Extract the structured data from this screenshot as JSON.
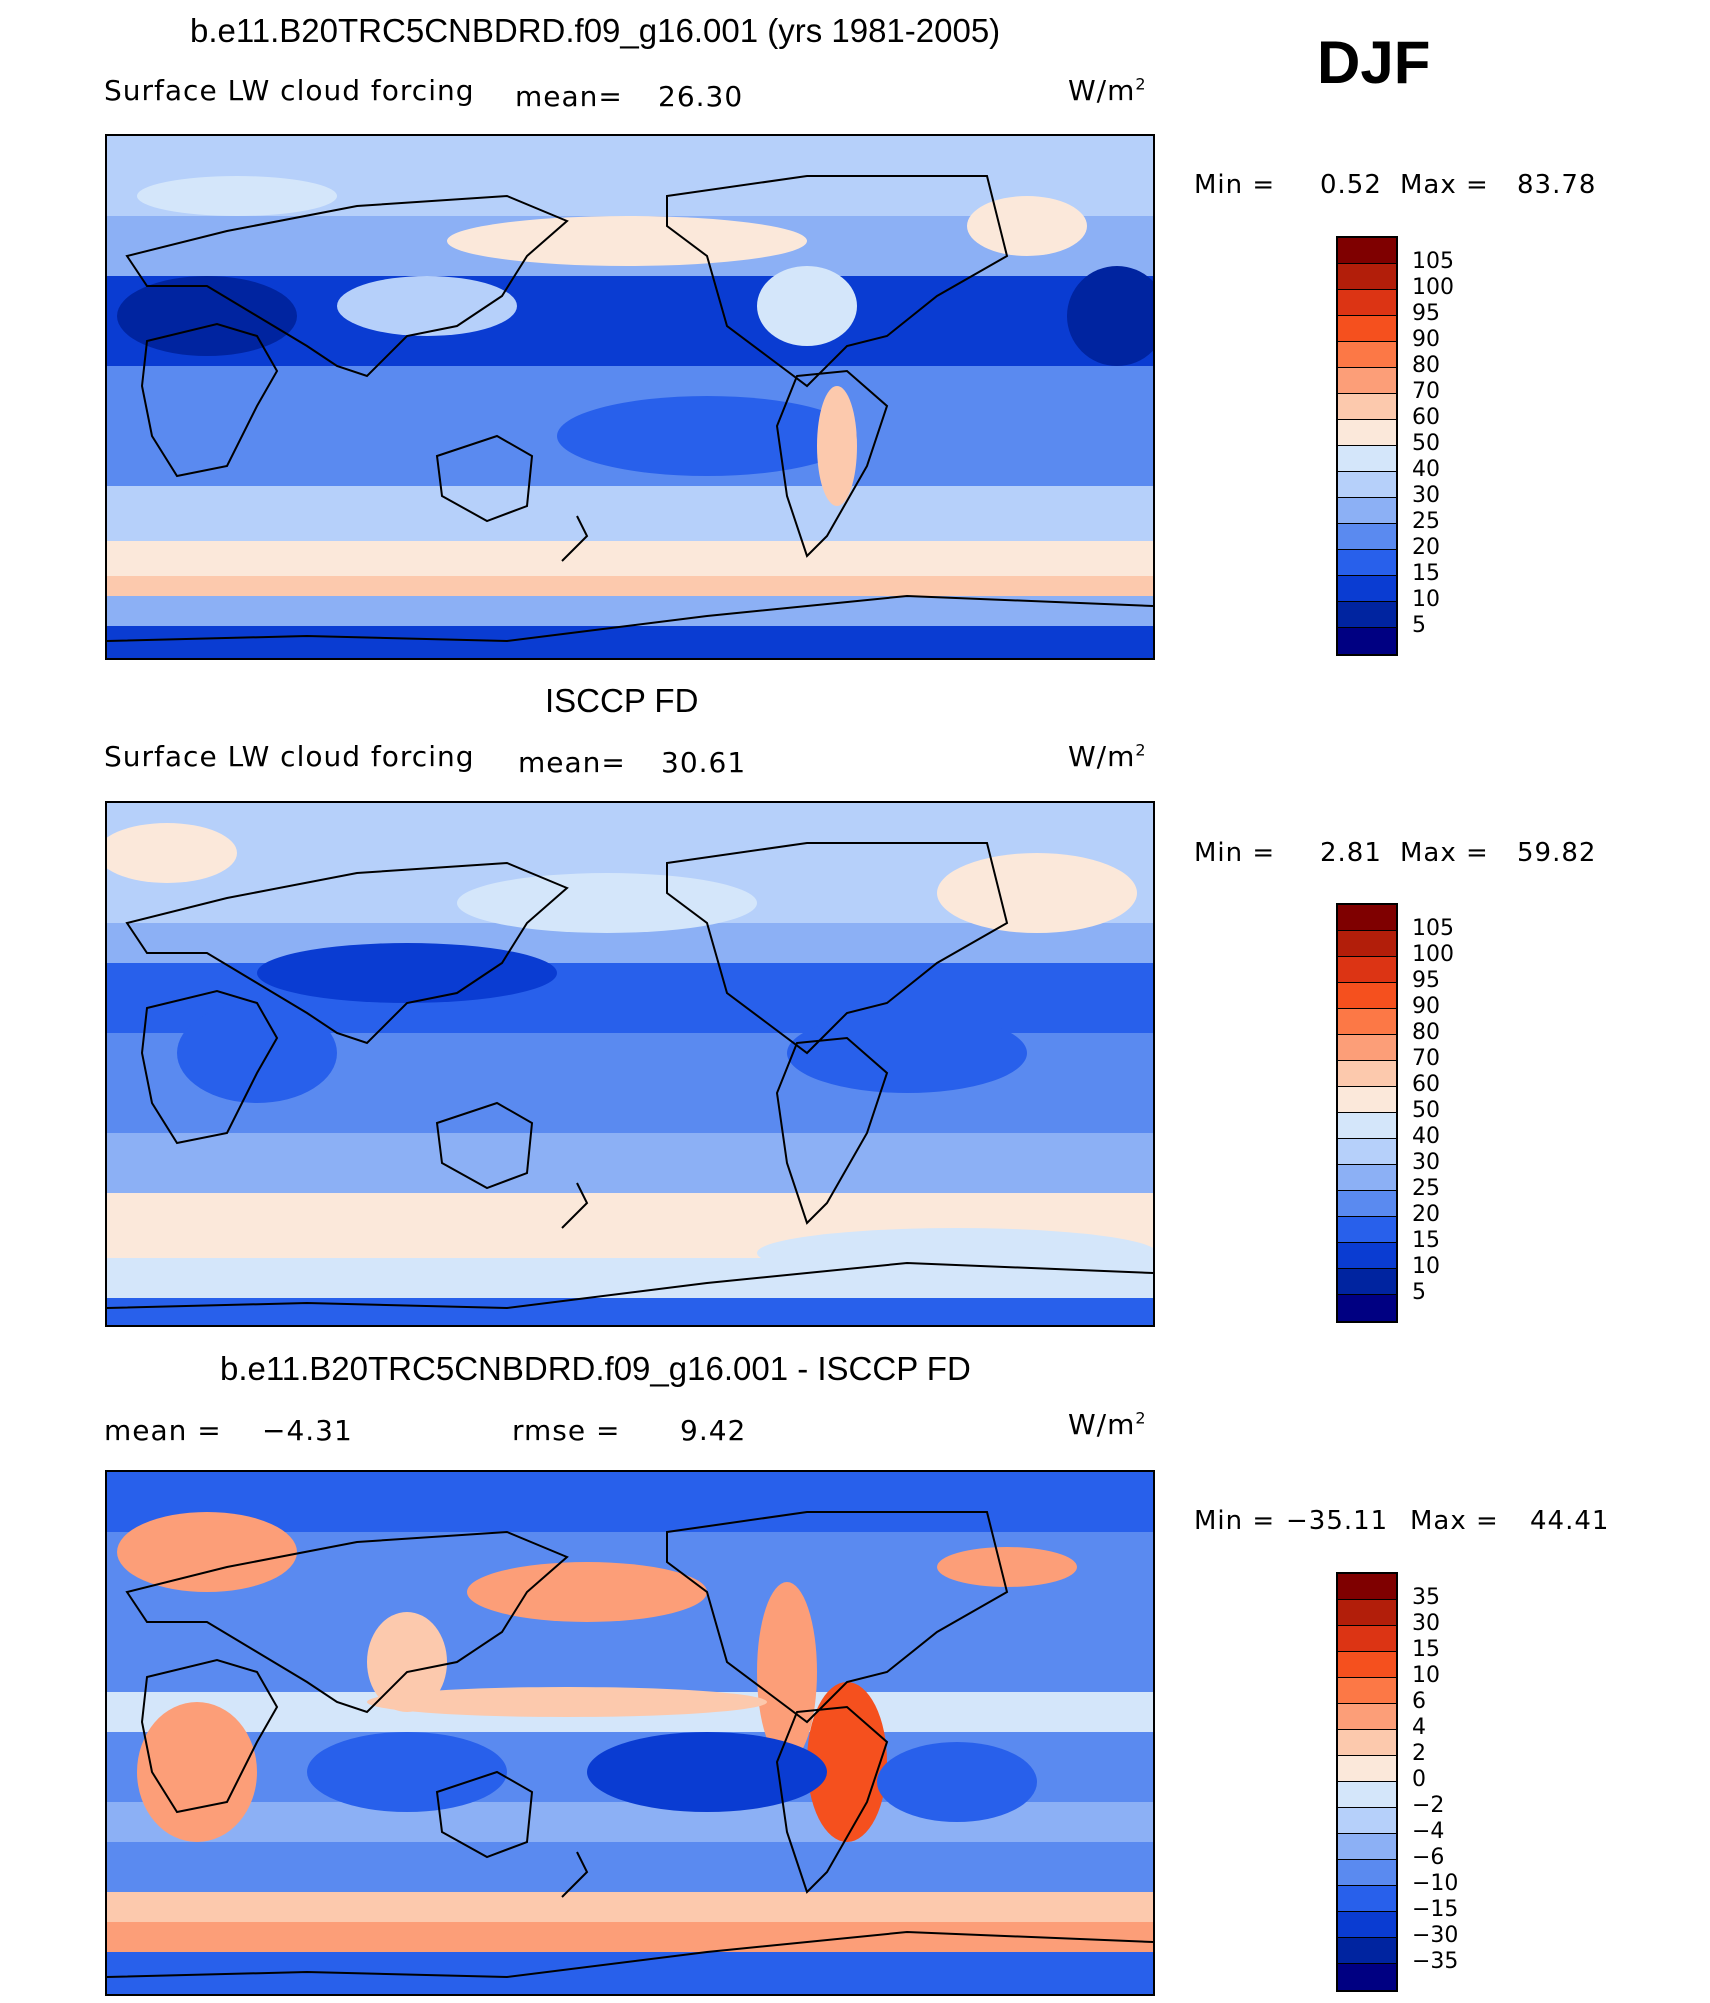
{
  "header": {
    "season": "DJF"
  },
  "chart_data": [
    {
      "type": "heatmap",
      "title": "b.e11.B20TRC5CNBDRD.f09_g16.001 (yrs 1981-2005)",
      "variable": "Surface LW cloud forcing",
      "mean_label": "mean=",
      "mean": "26.30",
      "units": "W/m",
      "units_exp": "2",
      "min_label": "Min =",
      "min": "0.52",
      "max_label": "Max =",
      "max": "83.78",
      "levels": [
        "105",
        "100",
        "95",
        "90",
        "80",
        "70",
        "60",
        "50",
        "40",
        "30",
        "25",
        "20",
        "15",
        "10",
        "5"
      ],
      "colors": [
        "#7f0000",
        "#b21e0a",
        "#dc3414",
        "#f5501e",
        "#fc7846",
        "#fc9e78",
        "#fcc9ad",
        "#fbe8da",
        "#d4e6fa",
        "#b6d0fa",
        "#8cb0f5",
        "#5a8af0",
        "#2860eb",
        "#0a3cd2",
        "#0024a0",
        "#000082"
      ],
      "pattern": "model"
    },
    {
      "type": "heatmap",
      "title": "ISCCP FD",
      "variable": "Surface LW cloud forcing",
      "mean_label": "mean=",
      "mean": "30.61",
      "units": "W/m",
      "units_exp": "2",
      "min_label": "Min =",
      "min": "2.81",
      "max_label": "Max =",
      "max": "59.82",
      "levels": [
        "105",
        "100",
        "95",
        "90",
        "80",
        "70",
        "60",
        "50",
        "40",
        "30",
        "25",
        "20",
        "15",
        "10",
        "5"
      ],
      "colors": [
        "#7f0000",
        "#b21e0a",
        "#dc3414",
        "#f5501e",
        "#fc7846",
        "#fc9e78",
        "#fcc9ad",
        "#fbe8da",
        "#d4e6fa",
        "#b6d0fa",
        "#8cb0f5",
        "#5a8af0",
        "#2860eb",
        "#0a3cd2",
        "#0024a0",
        "#000082"
      ],
      "pattern": "obs"
    },
    {
      "type": "heatmap",
      "title": "b.e11.B20TRC5CNBDRD.f09_g16.001 - ISCCP FD",
      "mean_label": "mean =",
      "mean": "−4.31",
      "rmse_label": "rmse =",
      "rmse": "9.42",
      "units": "W/m",
      "units_exp": "2",
      "min_label": "Min =",
      "min": "−35.11",
      "max_label": "Max =",
      "max": "44.41",
      "levels": [
        "35",
        "30",
        "15",
        "10",
        "6",
        "4",
        "2",
        "0",
        "−2",
        "−4",
        "−6",
        "−10",
        "−15",
        "−30",
        "−35"
      ],
      "colors": [
        "#7f0000",
        "#b21e0a",
        "#dc3414",
        "#f5501e",
        "#fc7846",
        "#fc9e78",
        "#fcc9ad",
        "#fbe8da",
        "#d4e6fa",
        "#b6d0fa",
        "#8cb0f5",
        "#5a8af0",
        "#2860eb",
        "#0a3cd2",
        "#0024a0",
        "#000082"
      ],
      "pattern": "diff"
    }
  ]
}
